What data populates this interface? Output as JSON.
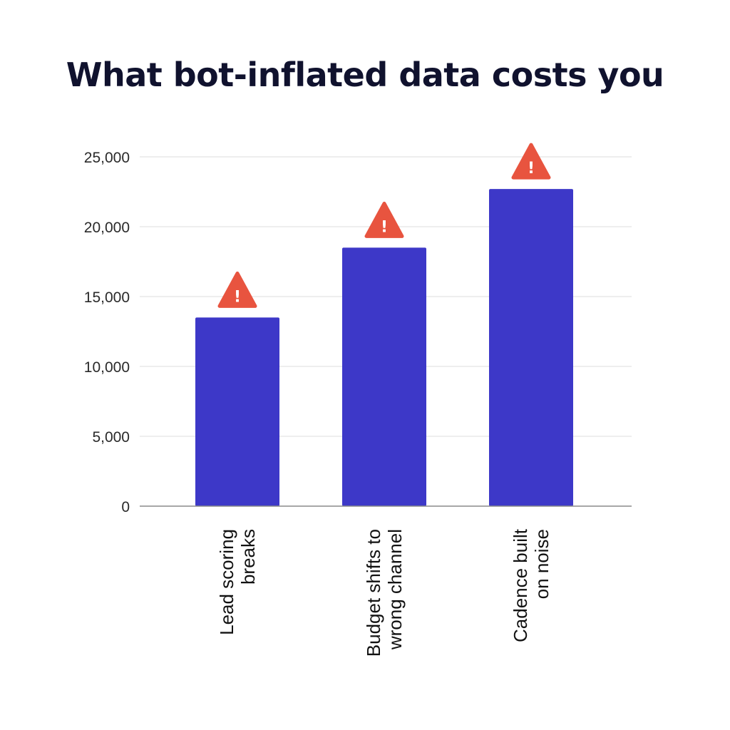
{
  "chart_data": {
    "type": "bar",
    "title": "What bot-inflated data costs you",
    "xlabel": "",
    "ylabel": "",
    "categories": [
      [
        "Lead scoring",
        "breaks"
      ],
      [
        "Budget shifts to",
        "wrong channel"
      ],
      [
        "Cadence built",
        "on noise"
      ]
    ],
    "values": [
      13500,
      18500,
      22700
    ],
    "ylim": [
      0,
      25000
    ],
    "yticks": [
      0,
      5000,
      10000,
      15000,
      20000,
      25000
    ],
    "ytick_labels": [
      "0",
      "5,000",
      "10,000",
      "15,000",
      "20,000",
      "25,000"
    ],
    "grid": true,
    "legend": "none",
    "annotations": {
      "icon": "warning-icon",
      "glyph": "!",
      "placement": "above-each-bar"
    },
    "colors": {
      "bar": "#3d38c8",
      "warning": "#e8543f",
      "grid": "#dcdcdc",
      "axis": "#8a8a8a"
    }
  }
}
